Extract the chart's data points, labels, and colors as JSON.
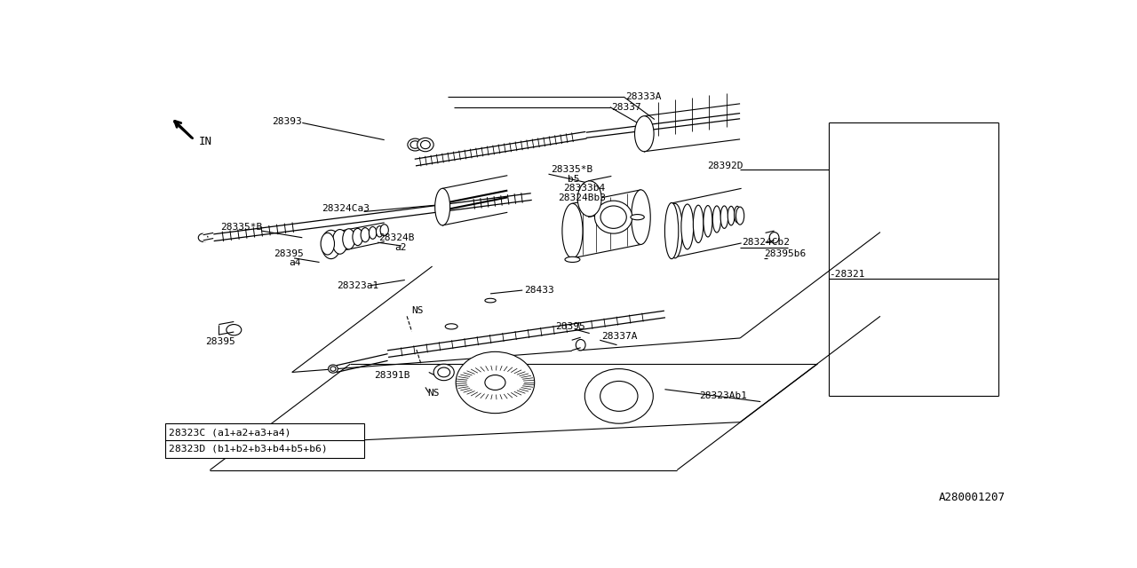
{
  "bg": "#ffffff",
  "lc": "#000000",
  "lw": 0.8,
  "fs": 8,
  "fig_code": "A280001207",
  "leg1": "28323C (a1+a2+a3+a4)",
  "leg2": "28323D (b1+b2+b3+b4+b5+b6)"
}
